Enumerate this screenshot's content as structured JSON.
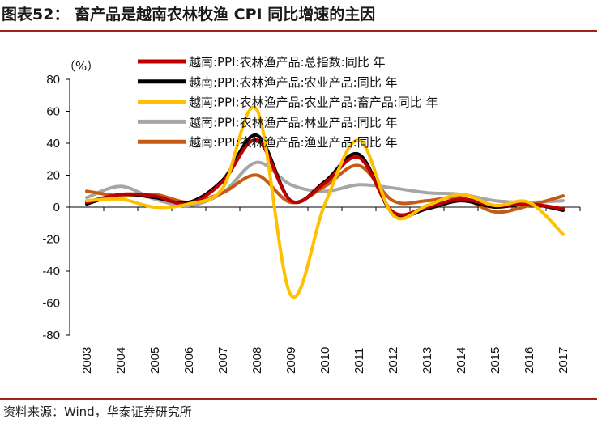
{
  "header": {
    "title": "图表52： 畜产品是越南农林牧渔 CPI 同比增速的主因"
  },
  "footer": {
    "source": "资料来源：Wind，华泰证券研究所"
  },
  "colors": {
    "rule": "#a32020"
  },
  "chart_data": {
    "type": "line",
    "unit_label": "（%）",
    "x": [
      "2003",
      "2004",
      "2005",
      "2006",
      "2007",
      "2008",
      "2009",
      "2010",
      "2011",
      "2012",
      "2013",
      "2014",
      "2015",
      "2016",
      "2017"
    ],
    "ylim": [
      -80,
      80
    ],
    "yticks": [
      80,
      60,
      40,
      20,
      0,
      -20,
      -40,
      -60,
      -80
    ],
    "grid": false,
    "legend_position": "top",
    "series": [
      {
        "name": "越南:PPI:农林渔产品:总指数:同比 年",
        "color": "#c00000",
        "values": [
          3,
          8,
          7,
          2,
          16,
          42,
          4,
          15,
          31,
          -3,
          0,
          5,
          1,
          2,
          -1
        ]
      },
      {
        "name": "越南:PPI:农林渔产品:农业产品:同比 年",
        "color": "#000000",
        "values": [
          2,
          8,
          6,
          3,
          17,
          45,
          4,
          16,
          33,
          -4,
          -1,
          4,
          0,
          2,
          -2
        ]
      },
      {
        "name": "越南:PPI:农林渔产品:农业产品:畜产品:同比 年",
        "color": "#ffc000",
        "values": [
          4,
          5,
          0,
          2,
          12,
          61,
          -55,
          2,
          42,
          -5,
          1,
          8,
          1,
          3,
          -17
        ]
      },
      {
        "name": "越南:PPI:农林渔产品:林业产品:同比 年",
        "color": "#a6a6a6",
        "values": [
          6,
          13,
          5,
          1,
          9,
          28,
          14,
          10,
          14,
          12,
          9,
          8,
          4,
          3,
          4
        ]
      },
      {
        "name": "越南:PPI:农林渔产品:渔业产品:同比 年",
        "color": "#c55a11",
        "values": [
          10,
          7,
          8,
          3,
          9,
          20,
          3,
          13,
          26,
          4,
          4,
          6,
          -3,
          1,
          7
        ]
      }
    ]
  }
}
